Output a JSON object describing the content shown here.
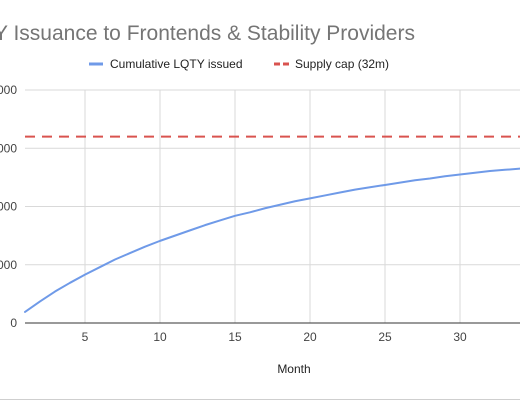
{
  "chart_data": {
    "type": "line",
    "title": "Y Issuance to Frontends & Stability Providers",
    "xlabel": "Month",
    "ylabel": "",
    "legend_position": "top",
    "grid": true,
    "xlim": [
      1,
      34
    ],
    "ylim": [
      0,
      40000000
    ],
    "x_ticks": [
      5,
      10,
      15,
      20,
      25,
      30
    ],
    "x_tick_labels": [
      "5",
      "10",
      "15",
      "20",
      "25",
      "30"
    ],
    "y_ticks": [
      0,
      10000000,
      20000000,
      30000000,
      40000000
    ],
    "y_tick_labels": [
      "0",
      "000",
      "000",
      "000",
      "000"
    ],
    "series": [
      {
        "name": "Cumulative LQTY issued",
        "color": "#6f9ae8",
        "style": "solid",
        "x": [
          1,
          2,
          3,
          4,
          5,
          6,
          7,
          8,
          9,
          10,
          11,
          12,
          13,
          14,
          15,
          16,
          17,
          18,
          19,
          20,
          21,
          22,
          23,
          24,
          25,
          26,
          27,
          28,
          29,
          30,
          31,
          32,
          33,
          34
        ],
        "y": [
          1900000,
          3700000,
          5400000,
          6900000,
          8300000,
          9600000,
          10900000,
          12000000,
          13100000,
          14100000,
          15000000,
          15900000,
          16800000,
          17600000,
          18400000,
          19000000,
          19700000,
          20300000,
          20900000,
          21400000,
          21900000,
          22400000,
          22900000,
          23300000,
          23700000,
          24100000,
          24500000,
          24800000,
          25200000,
          25500000,
          25800000,
          26100000,
          26300000,
          26500000
        ]
      },
      {
        "name": "Supply cap (32m)",
        "color": "#d9534f",
        "style": "dashed",
        "x": [
          1,
          34
        ],
        "y": [
          32000000,
          32000000
        ]
      }
    ]
  }
}
